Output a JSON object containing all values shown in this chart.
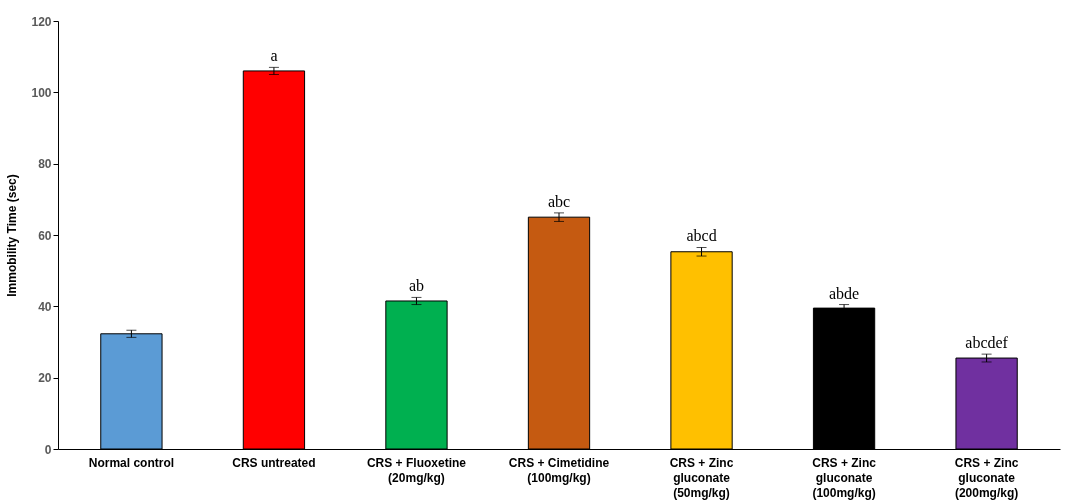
{
  "chart_data": {
    "type": "bar",
    "ylabel": "Immobility Time (sec)",
    "categories": [
      "Normal control",
      "CRS untreated",
      "CRS + Fluoxetine\n(20mg/kg)",
      "CRS + Cimetidine\n(100mg/kg)",
      "CRS + Zinc\ngluconate\n(50mg/kg)",
      "CRS + Zinc\ngluconate\n(100mg/kg)",
      "CRS + Zinc\ngluconate\n(200mg/kg)"
    ],
    "values": [
      32.3,
      106,
      41.5,
      65,
      55.3,
      39.5,
      25.5
    ],
    "errors": [
      1,
      1,
      1,
      1.2,
      1.2,
      1,
      1.1
    ],
    "colors": [
      "#5b9bd5",
      "#ff0000",
      "#00b050",
      "#c55a11",
      "#ffc000",
      "#000000",
      "#7030a0"
    ],
    "ylim": [
      0,
      120
    ],
    "yticks": [
      0,
      20,
      40,
      60,
      80,
      100,
      120
    ],
    "grid": false,
    "annotations": [
      {
        "text": "a",
        "x": "CRS untreated",
        "y": 107
      },
      {
        "text": "ab",
        "x": "CRS + Fluoxetine\n(20mg/kg)",
        "y": 42.5
      },
      {
        "text": "abc",
        "x": "CRS + Cimetidine\n(100mg/kg)",
        "y": 66.2
      },
      {
        "text": "abcd",
        "x": "CRS + Zinc\ngluconate\n(50mg/kg)",
        "y": 56.5
      },
      {
        "text": "abde",
        "x": "CRS + Zinc\ngluconate\n(100mg/kg)",
        "y": 40.5
      },
      {
        "text": "abcdef",
        "x": "CRS + Zinc\ngluconate\n(200mg/kg)",
        "y": 26.6
      }
    ]
  }
}
